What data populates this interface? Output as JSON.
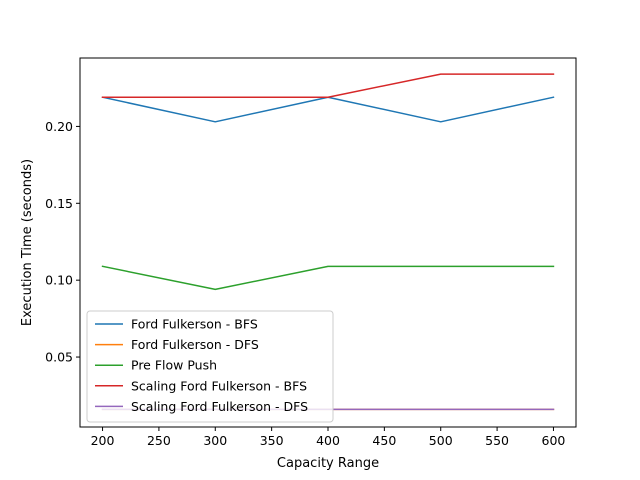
{
  "chart_data": {
    "type": "line",
    "title": "",
    "xlabel": "Capacity Range",
    "ylabel": "Execution Time (seconds)",
    "x": [
      200,
      300,
      400,
      500,
      600
    ],
    "xlim": [
      180,
      620
    ],
    "ylim": [
      0.0045,
      0.2445
    ],
    "xticks": [
      200,
      250,
      300,
      350,
      400,
      450,
      500,
      550,
      600
    ],
    "yticks": [
      0.05,
      0.1,
      0.15,
      0.2
    ],
    "ytick_labels": [
      "0.05",
      "0.10",
      "0.15",
      "0.20"
    ],
    "grid": false,
    "legend_position": "lower-left",
    "series": [
      {
        "name": "Ford Fulkerson - BFS",
        "color": "#1f77b4",
        "values": [
          0.219,
          0.203,
          0.219,
          0.203,
          0.219
        ]
      },
      {
        "name": "Ford Fulkerson - DFS",
        "color": "#ff7f0e",
        "values": [
          0.016,
          0.016,
          0.016,
          0.016,
          0.016
        ]
      },
      {
        "name": "Pre Flow Push",
        "color": "#2ca02c",
        "values": [
          0.109,
          0.094,
          0.109,
          0.109,
          0.109
        ]
      },
      {
        "name": "Scaling Ford Fulkerson - BFS",
        "color": "#d62728",
        "values": [
          0.219,
          0.219,
          0.219,
          0.234,
          0.234
        ]
      },
      {
        "name": "Scaling Ford Fulkerson - DFS",
        "color": "#9467bd",
        "values": [
          0.016,
          0.016,
          0.016,
          0.016,
          0.016
        ]
      }
    ]
  }
}
